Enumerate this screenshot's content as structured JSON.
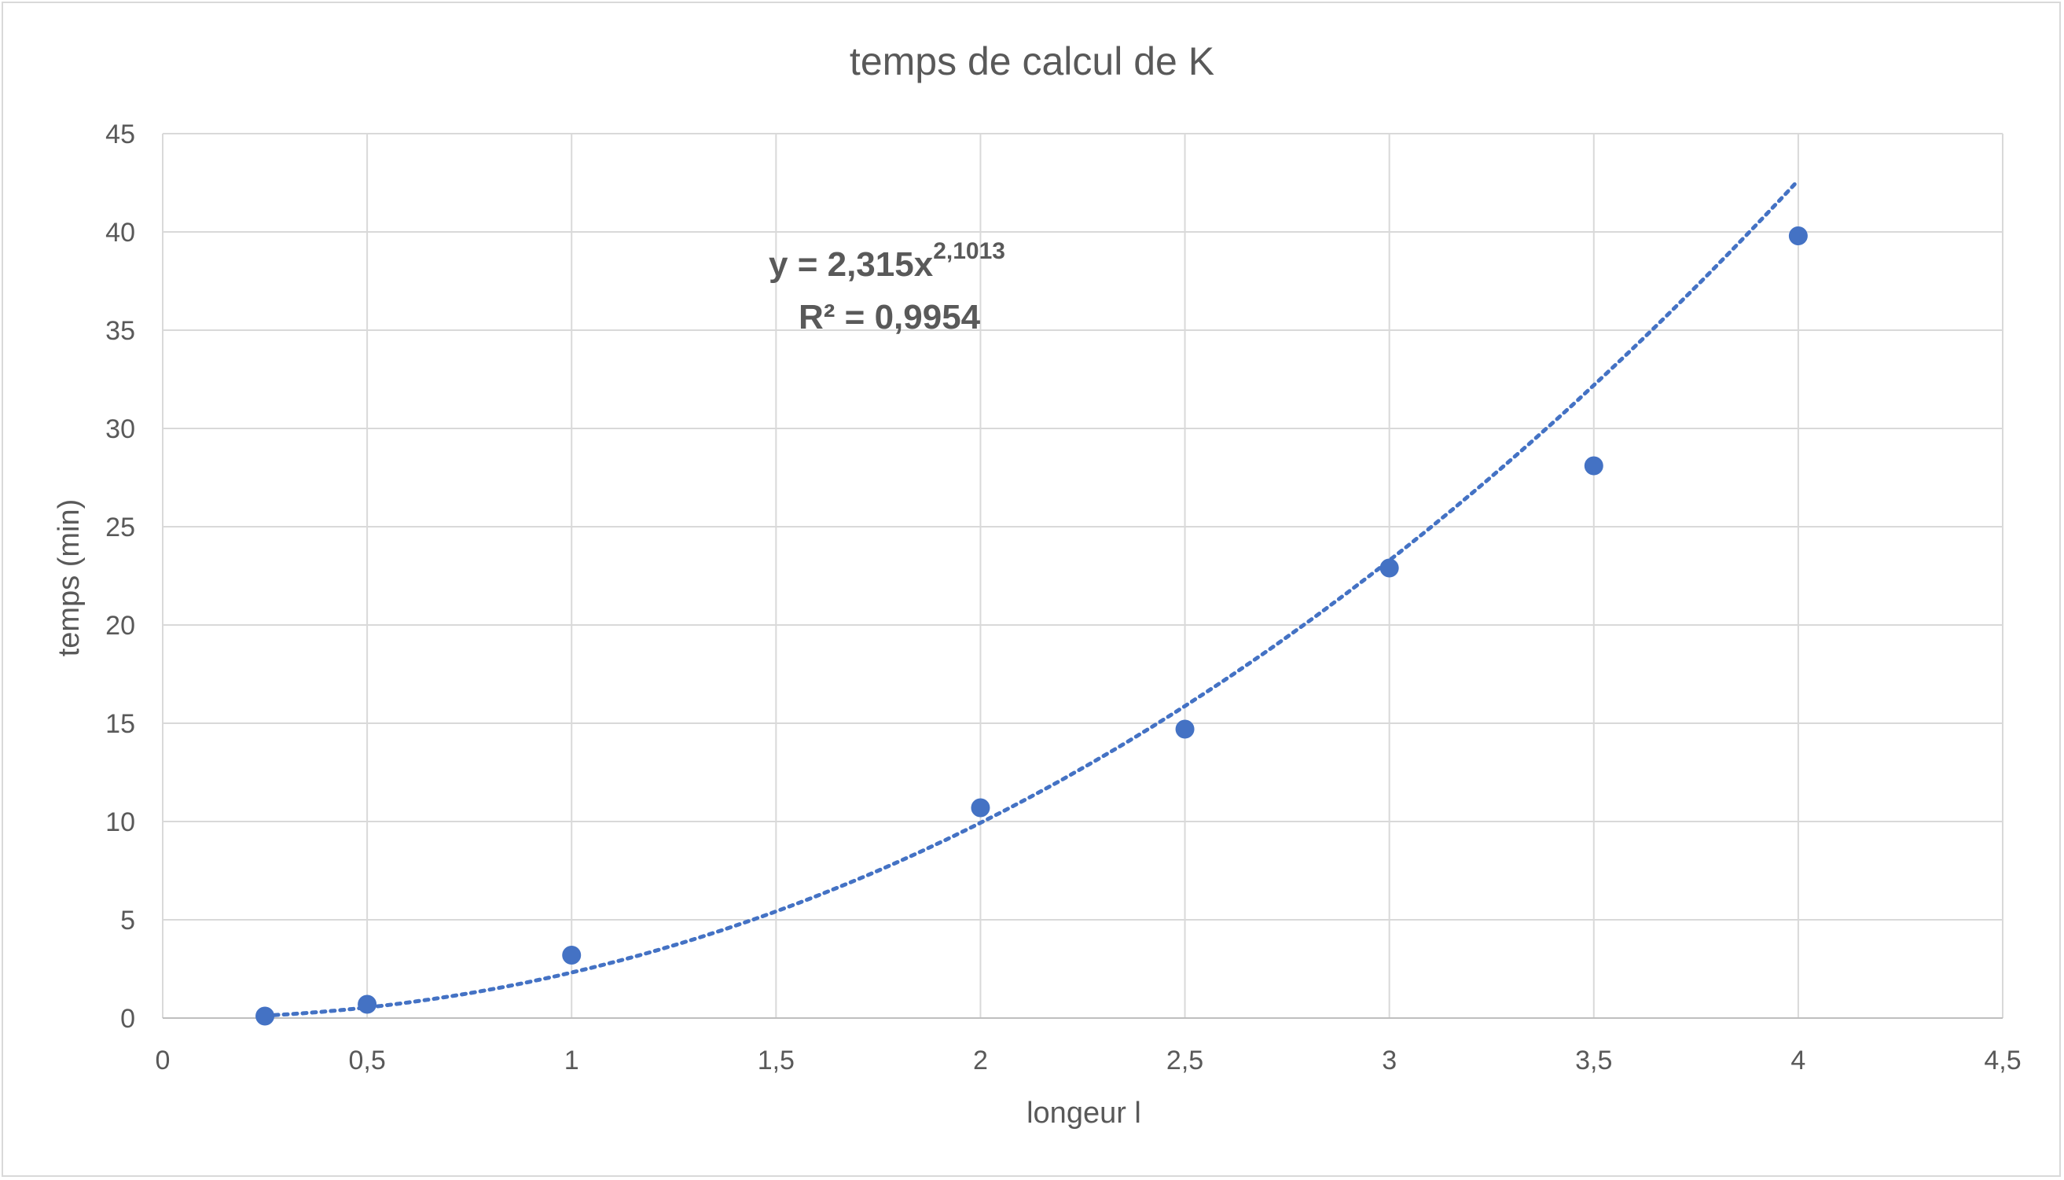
{
  "chart_data": {
    "type": "scatter",
    "title": "temps de calcul de K",
    "xlabel": "longeur l",
    "ylabel": "temps (min)",
    "xlim": [
      0,
      4.5
    ],
    "ylim": [
      0,
      45
    ],
    "x_ticks": [
      "0",
      "0,5",
      "1",
      "1,5",
      "2",
      "2,5",
      "3",
      "3,5",
      "4",
      "4,5"
    ],
    "y_ticks": [
      "0",
      "5",
      "10",
      "15",
      "20",
      "25",
      "30",
      "35",
      "40",
      "45"
    ],
    "grid": true,
    "legend": "none",
    "series": [
      {
        "x": [
          0.25,
          0.5,
          1,
          2,
          2.5,
          3,
          3.5,
          4
        ],
        "y": [
          0.1,
          0.7,
          3.2,
          10.7,
          14.7,
          22.9,
          28.1,
          39.8
        ],
        "color": "#4472c4"
      }
    ],
    "trendline": {
      "type": "power",
      "coefficient": 2.315,
      "exponent": 2.1013,
      "style": "dotted",
      "color": "#4472c4",
      "equation_base": "y = 2,315x",
      "equation_exponent": "2,1013",
      "r_squared": "R² = 0,9954"
    }
  }
}
